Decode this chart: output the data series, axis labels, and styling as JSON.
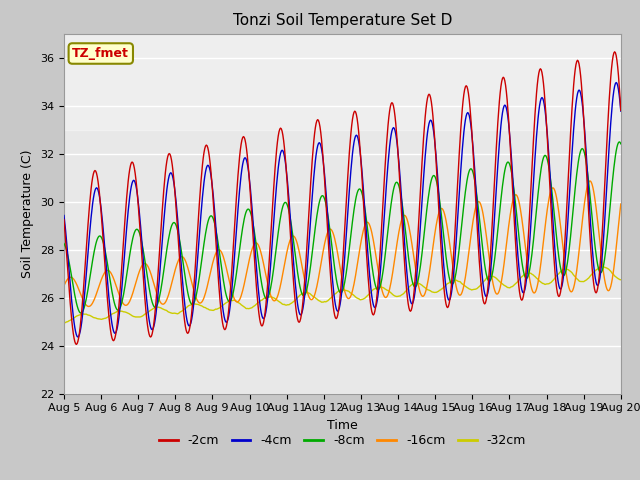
{
  "title": "Tonzi Soil Temperature Set D",
  "xlabel": "Time",
  "ylabel": "Soil Temperature (C)",
  "ylim": [
    22,
    37
  ],
  "xlim": [
    0,
    360
  ],
  "fig_bg": "#c8c8c8",
  "plot_bg": "#e8e8e8",
  "series_colors": [
    "#cc0000",
    "#0000cc",
    "#00aa00",
    "#ff8800",
    "#cccc00"
  ],
  "series_labels": [
    "-2cm",
    "-4cm",
    "-8cm",
    "-16cm",
    "-32cm"
  ],
  "annotation_text": "TZ_fmet",
  "annotation_color": "#cc0000",
  "annotation_bg": "#ffffcc",
  "annotation_edge": "#888800",
  "tick_labels": [
    "Aug 5",
    "Aug 6",
    "Aug 7",
    "Aug 8",
    "Aug 9",
    "Aug 10",
    "Aug 11",
    "Aug 12",
    "Aug 13",
    "Aug 14",
    "Aug 15",
    "Aug 16",
    "Aug 17",
    "Aug 18",
    "Aug 19",
    "Aug 20"
  ],
  "tick_positions": [
    0,
    24,
    48,
    72,
    96,
    120,
    144,
    168,
    192,
    216,
    240,
    264,
    288,
    312,
    336,
    360
  ],
  "yticks": [
    22,
    24,
    26,
    28,
    30,
    32,
    34,
    36
  ]
}
